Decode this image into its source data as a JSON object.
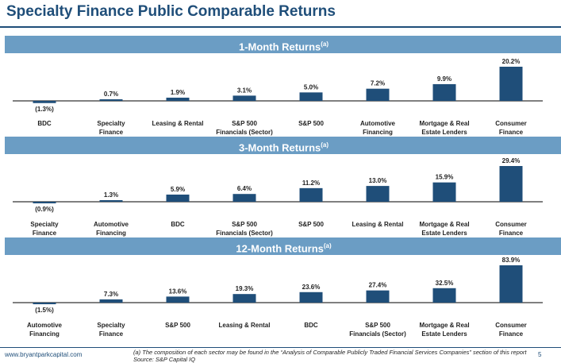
{
  "page": {
    "title": "Specialty Finance Public Comparable Returns"
  },
  "footer": {
    "url": "www.bryantparkcapital.com",
    "note_line1": "(a) The composition of each sector may be found in the “Analysis of Comparable Publicly Traded Financial Services Companies” section of this report",
    "note_line2": "Source: S&P Capital IQ",
    "page_number": "5"
  },
  "colors": {
    "bar": "#1f4e79",
    "header": "#6b9dc4",
    "title": "#1f4e79"
  },
  "chart_data": [
    {
      "type": "bar",
      "title": "1-Month Returns",
      "title_superscript": "(a)",
      "categories": [
        "BDC",
        "Specialty\nFinance",
        "Leasing & Rental",
        "S&P 500\nFinancials (Sector)",
        "S&P 500",
        "Automotive\nFinancing",
        "Mortgage & Real\nEstate Lenders",
        "Consumer\nFinance"
      ],
      "values": [
        -1.3,
        0.7,
        1.9,
        3.1,
        5.0,
        7.2,
        9.9,
        20.2
      ],
      "labels": [
        "(1.3%)",
        "0.7%",
        "1.9%",
        "3.1%",
        "5.0%",
        "7.2%",
        "9.9%",
        "20.2%"
      ],
      "ylim": [
        -1.3,
        20.2
      ]
    },
    {
      "type": "bar",
      "title": "3-Month Returns",
      "title_superscript": "(a)",
      "categories": [
        "Specialty\nFinance",
        "Automotive\nFinancing",
        "BDC",
        "S&P 500\nFinancials (Sector)",
        "S&P 500",
        "Leasing & Rental",
        "Mortgage & Real\nEstate Lenders",
        "Consumer\nFinance"
      ],
      "values": [
        -0.9,
        1.3,
        5.9,
        6.4,
        11.2,
        13.0,
        15.9,
        29.4
      ],
      "labels": [
        "(0.9%)",
        "1.3%",
        "5.9%",
        "6.4%",
        "11.2%",
        "13.0%",
        "15.9%",
        "29.4%"
      ],
      "ylim": [
        -0.9,
        29.4
      ]
    },
    {
      "type": "bar",
      "title": "12-Month Returns",
      "title_superscript": "(a)",
      "categories": [
        "Automotive\nFinancing",
        "Specialty\nFinance",
        "S&P 500",
        "Leasing & Rental",
        "BDC",
        "S&P 500\nFinancials (Sector)",
        "Mortgage & Real\nEstate Lenders",
        "Consumer\nFinance"
      ],
      "values": [
        -1.5,
        7.3,
        13.6,
        19.3,
        23.6,
        27.4,
        32.5,
        83.9
      ],
      "labels": [
        "(1.5%)",
        "7.3%",
        "13.6%",
        "19.3%",
        "23.6%",
        "27.4%",
        "32.5%",
        "83.9%"
      ],
      "ylim": [
        -1.5,
        83.9
      ]
    }
  ]
}
